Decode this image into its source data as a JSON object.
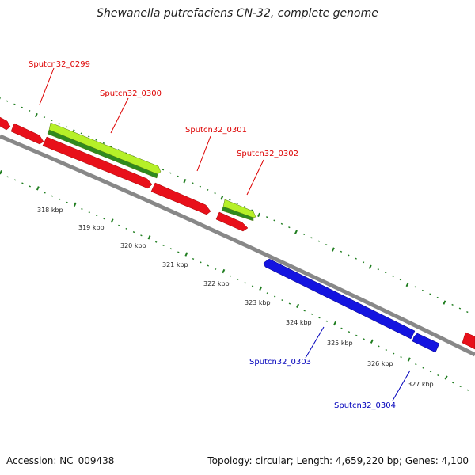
{
  "title": "Shewanella putrefaciens CN-32, complete genome",
  "footer": {
    "accession": "Accession: NC_009438",
    "summary": "Topology: circular; Length: 4,659,220 bp; Genes: 4,100"
  },
  "colors": {
    "forward_gene": "#e8101a",
    "reverse_gene": "#1414e0",
    "feature_light": "#b6f028",
    "feature_dark": "#2f8a1f",
    "backbone": "#888888",
    "tick": "#1f7d1f",
    "label_forward": "#dd0000",
    "label_reverse": "#0000bb"
  },
  "gene_labels": [
    {
      "text": "Sputcn32_0299",
      "strand": "forward"
    },
    {
      "text": "Sputcn32_0300",
      "strand": "forward"
    },
    {
      "text": "Sputcn32_0301",
      "strand": "forward"
    },
    {
      "text": "Sputcn32_0302",
      "strand": "forward"
    },
    {
      "text": "Sputcn32_0303",
      "strand": "reverse"
    },
    {
      "text": "Sputcn32_0304",
      "strand": "reverse"
    }
  ],
  "scale_labels": [
    "318 kbp",
    "319 kbp",
    "320 kbp",
    "321 kbp",
    "322 kbp",
    "323 kbp",
    "324 kbp",
    "325 kbp",
    "326 kbp",
    "327 kbp"
  ]
}
